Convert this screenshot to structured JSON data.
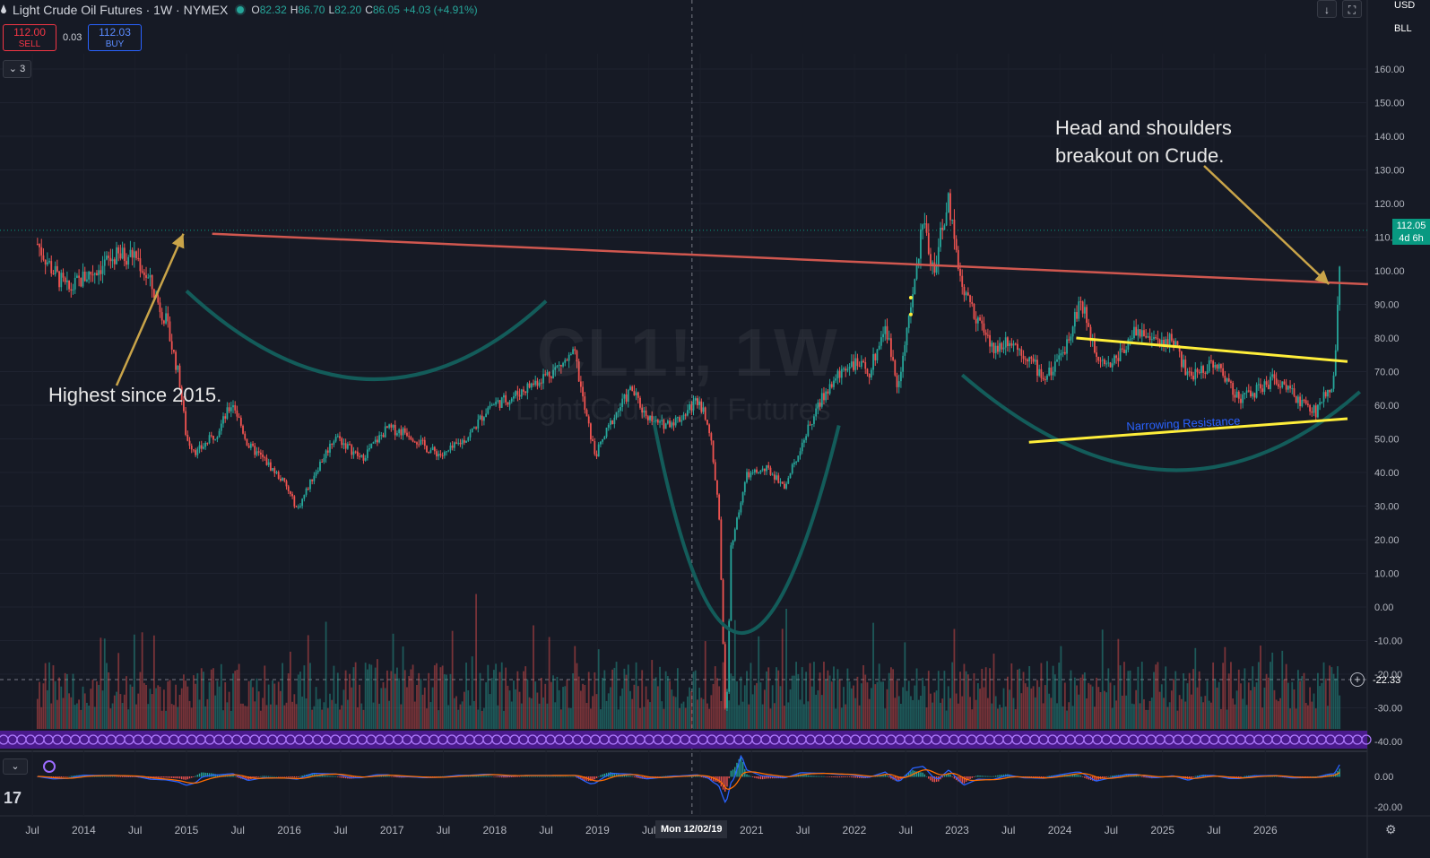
{
  "header": {
    "symbol": "Light Crude Oil Futures · 1W · NYMEX",
    "o_label": "O",
    "o_value": "82.32",
    "h_label": "H",
    "h_value": "86.70",
    "l_label": "L",
    "l_value": "82.20",
    "c_label": "C",
    "c_value": "86.05",
    "change": "+4.03 (+4.91%)",
    "indicator_count": "3"
  },
  "trade": {
    "sell_price": "112.00",
    "sell_label": "SELL",
    "buy_price": "112.03",
    "buy_label": "BUY",
    "spread": "0.03"
  },
  "toolbar": {
    "download_icon": "↓",
    "fullscreen_icon": "⛶"
  },
  "price_scale": {
    "currency": "USD",
    "unit": "BLL"
  },
  "annotations": {
    "left": "Highest since 2015.",
    "right_line1": "Head and shoulders",
    "right_line2": "breakout on Crude.",
    "narrowing": "Narrowing Resistance"
  },
  "watermark": {
    "ticker": "CL1!, 1W",
    "name": "Light Crude Oil Futures"
  },
  "last_price": {
    "price": "112.05",
    "countdown": "4d 6h"
  },
  "crosshair": {
    "date_label": "Mon 12/02/19",
    "price_label": "-22.33"
  },
  "colors": {
    "up": "#26a69a",
    "down": "#ef5350",
    "trendline": "#d0574f",
    "arc": "#135c5a",
    "channel": "#ffee3a",
    "arrow": "#c9a449",
    "macd": "#2962ff",
    "signal": "#ff6d00"
  },
  "chart_data": {
    "type": "candlestick",
    "title": "Light Crude Oil Futures · 1W · NYMEX",
    "y_ticks": [
      "160.00",
      "150.00",
      "140.00",
      "130.00",
      "120.00",
      "110.00",
      "100.00",
      "90.00",
      "80.00",
      "70.00",
      "60.00",
      "50.00",
      "40.00",
      "30.00",
      "20.00",
      "10.00",
      "0.00",
      "-10.00",
      "-20.00",
      "-30.00",
      "-40.00"
    ],
    "macd_ticks": [
      "0.00",
      "-20.00"
    ],
    "x_ticks": [
      "Jul",
      "2014",
      "Jul",
      "2015",
      "Jul",
      "2016",
      "Jul",
      "2017",
      "Jul",
      "2018",
      "Jul",
      "2019",
      "Jul",
      "Jul",
      "2021",
      "Jul",
      "2022",
      "Jul",
      "2023",
      "Jul",
      "2024",
      "Jul",
      "2025",
      "Jul",
      "2026"
    ],
    "ylim": [
      -40,
      165
    ],
    "price_path": [
      {
        "date": "2013.55",
        "close": 108
      },
      {
        "date": "2013.70",
        "close": 100
      },
      {
        "date": "2013.85",
        "close": 94
      },
      {
        "date": "2014.00",
        "close": 98
      },
      {
        "date": "2014.30",
        "close": 104
      },
      {
        "date": "2014.50",
        "close": 105
      },
      {
        "date": "2014.65",
        "close": 96
      },
      {
        "date": "2014.80",
        "close": 85
      },
      {
        "date": "2014.93",
        "close": 68
      },
      {
        "date": "2015.00",
        "close": 50
      },
      {
        "date": "2015.10",
        "close": 46
      },
      {
        "date": "2015.30",
        "close": 52
      },
      {
        "date": "2015.45",
        "close": 61
      },
      {
        "date": "2015.60",
        "close": 48
      },
      {
        "date": "2015.75",
        "close": 44
      },
      {
        "date": "2015.95",
        "close": 37
      },
      {
        "date": "2016.08",
        "close": 29
      },
      {
        "date": "2016.25",
        "close": 40
      },
      {
        "date": "2016.45",
        "close": 51
      },
      {
        "date": "2016.70",
        "close": 44
      },
      {
        "date": "2016.95",
        "close": 53
      },
      {
        "date": "2017.15",
        "close": 52
      },
      {
        "date": "2017.35",
        "close": 47
      },
      {
        "date": "2017.50",
        "close": 45
      },
      {
        "date": "2017.75",
        "close": 51
      },
      {
        "date": "2017.95",
        "close": 60
      },
      {
        "date": "2018.15",
        "close": 62
      },
      {
        "date": "2018.40",
        "close": 67
      },
      {
        "date": "2018.60",
        "close": 71
      },
      {
        "date": "2018.78",
        "close": 75
      },
      {
        "date": "2018.88",
        "close": 58
      },
      {
        "date": "2018.98",
        "close": 45
      },
      {
        "date": "2019.15",
        "close": 56
      },
      {
        "date": "2019.33",
        "close": 65
      },
      {
        "date": "2019.45",
        "close": 58
      },
      {
        "date": "2019.60",
        "close": 54
      },
      {
        "date": "2019.80",
        "close": 56
      },
      {
        "date": "2019.98",
        "close": 62
      },
      {
        "date": "2020.08",
        "close": 55
      },
      {
        "date": "2020.18",
        "close": 30
      },
      {
        "date": "2020.25",
        "close": -37
      },
      {
        "date": "2020.30",
        "close": 18
      },
      {
        "date": "2020.45",
        "close": 39
      },
      {
        "date": "2020.65",
        "close": 41
      },
      {
        "date": "2020.83",
        "close": 36
      },
      {
        "date": "2020.98",
        "close": 48
      },
      {
        "date": "2021.20",
        "close": 63
      },
      {
        "date": "2021.45",
        "close": 73
      },
      {
        "date": "2021.65",
        "close": 70
      },
      {
        "date": "2021.80",
        "close": 84
      },
      {
        "date": "2021.92",
        "close": 66
      },
      {
        "date": "2022.05",
        "close": 88
      },
      {
        "date": "2022.17",
        "close": 115
      },
      {
        "date": "2022.27",
        "close": 100
      },
      {
        "date": "2022.42",
        "close": 121
      },
      {
        "date": "2022.55",
        "close": 95
      },
      {
        "date": "2022.70",
        "close": 86
      },
      {
        "date": "2022.85",
        "close": 76
      },
      {
        "date": "2023.00",
        "close": 80
      },
      {
        "date": "2023.20",
        "close": 74
      },
      {
        "date": "2023.35",
        "close": 68
      },
      {
        "date": "2023.50",
        "close": 73
      },
      {
        "date": "2023.70",
        "close": 91
      },
      {
        "date": "2023.85",
        "close": 76
      },
      {
        "date": "2024.00",
        "close": 72
      },
      {
        "date": "2024.25",
        "close": 83
      },
      {
        "date": "2024.45",
        "close": 78
      },
      {
        "date": "2024.60",
        "close": 80
      },
      {
        "date": "2024.75",
        "close": 68
      },
      {
        "date": "2025.00",
        "close": 73
      },
      {
        "date": "2025.25",
        "close": 62
      },
      {
        "date": "2025.45",
        "close": 65
      },
      {
        "date": "2025.60",
        "close": 68
      },
      {
        "date": "2025.80",
        "close": 62
      },
      {
        "date": "2026.00",
        "close": 58
      },
      {
        "date": "2026.10",
        "close": 65
      },
      {
        "date": "2026.17",
        "close": 67
      },
      {
        "date": "2026.20",
        "close": 85
      },
      {
        "date": "2026.24",
        "close": 112
      }
    ],
    "last_close": 112.05
  }
}
